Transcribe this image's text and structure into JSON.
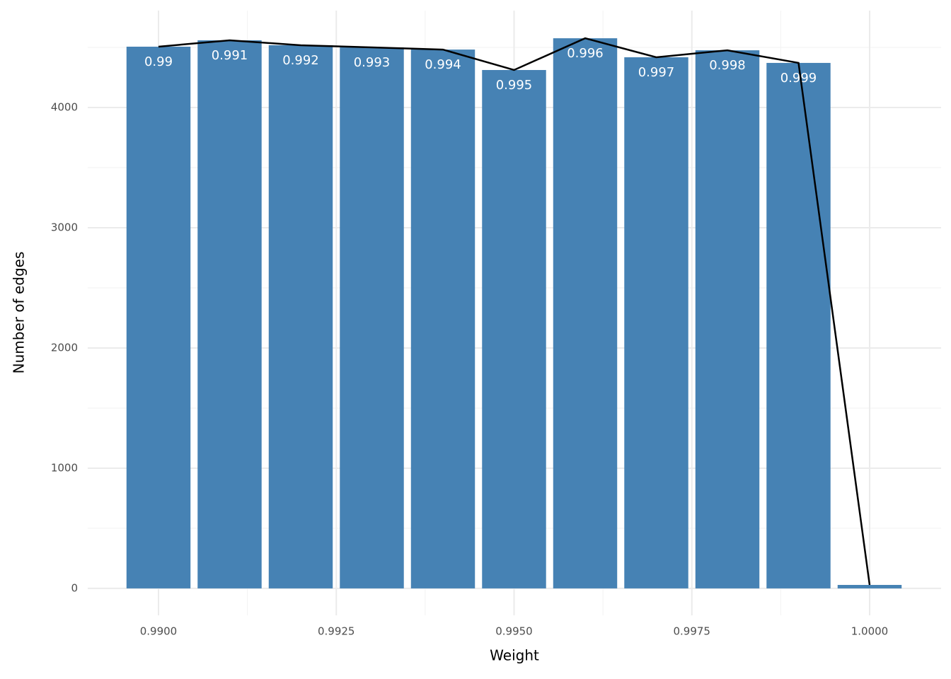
{
  "chart_data": {
    "type": "bar",
    "x_label": "Weight",
    "y_label": "Number of edges",
    "x": [
      0.99,
      0.991,
      0.992,
      0.993,
      0.994,
      0.995,
      0.996,
      0.997,
      0.998,
      0.999,
      1.0
    ],
    "values": [
      4506,
      4559,
      4518,
      4500,
      4482,
      4312,
      4576,
      4418,
      4476,
      4371,
      29
    ],
    "bar_labels": [
      "0.99",
      "0.991",
      "0.992",
      "0.993",
      "0.994",
      "0.995",
      "0.996",
      "0.997",
      "0.998",
      "0.999",
      null
    ],
    "color": "#4682b4",
    "line_color": "#000000",
    "xlim": [
      0.989005,
      1.001005
    ],
    "xticks": [
      {
        "value": 0.99,
        "label": "0.9900"
      },
      {
        "value": 0.9925,
        "label": "0.9925"
      },
      {
        "value": 0.995,
        "label": "0.9950"
      },
      {
        "value": 0.9975,
        "label": "0.9975"
      },
      {
        "value": 1.0,
        "label": "1.0000"
      }
    ],
    "minor_xticks": [
      0.99125,
      0.99375,
      0.99625,
      0.99875
    ],
    "ylim": [
      -224,
      4806
    ],
    "yticks": [
      0,
      1000,
      2000,
      3000,
      4000
    ],
    "minor_yticks": [
      500,
      1500,
      2500,
      3500,
      4500
    ],
    "grid": true
  }
}
